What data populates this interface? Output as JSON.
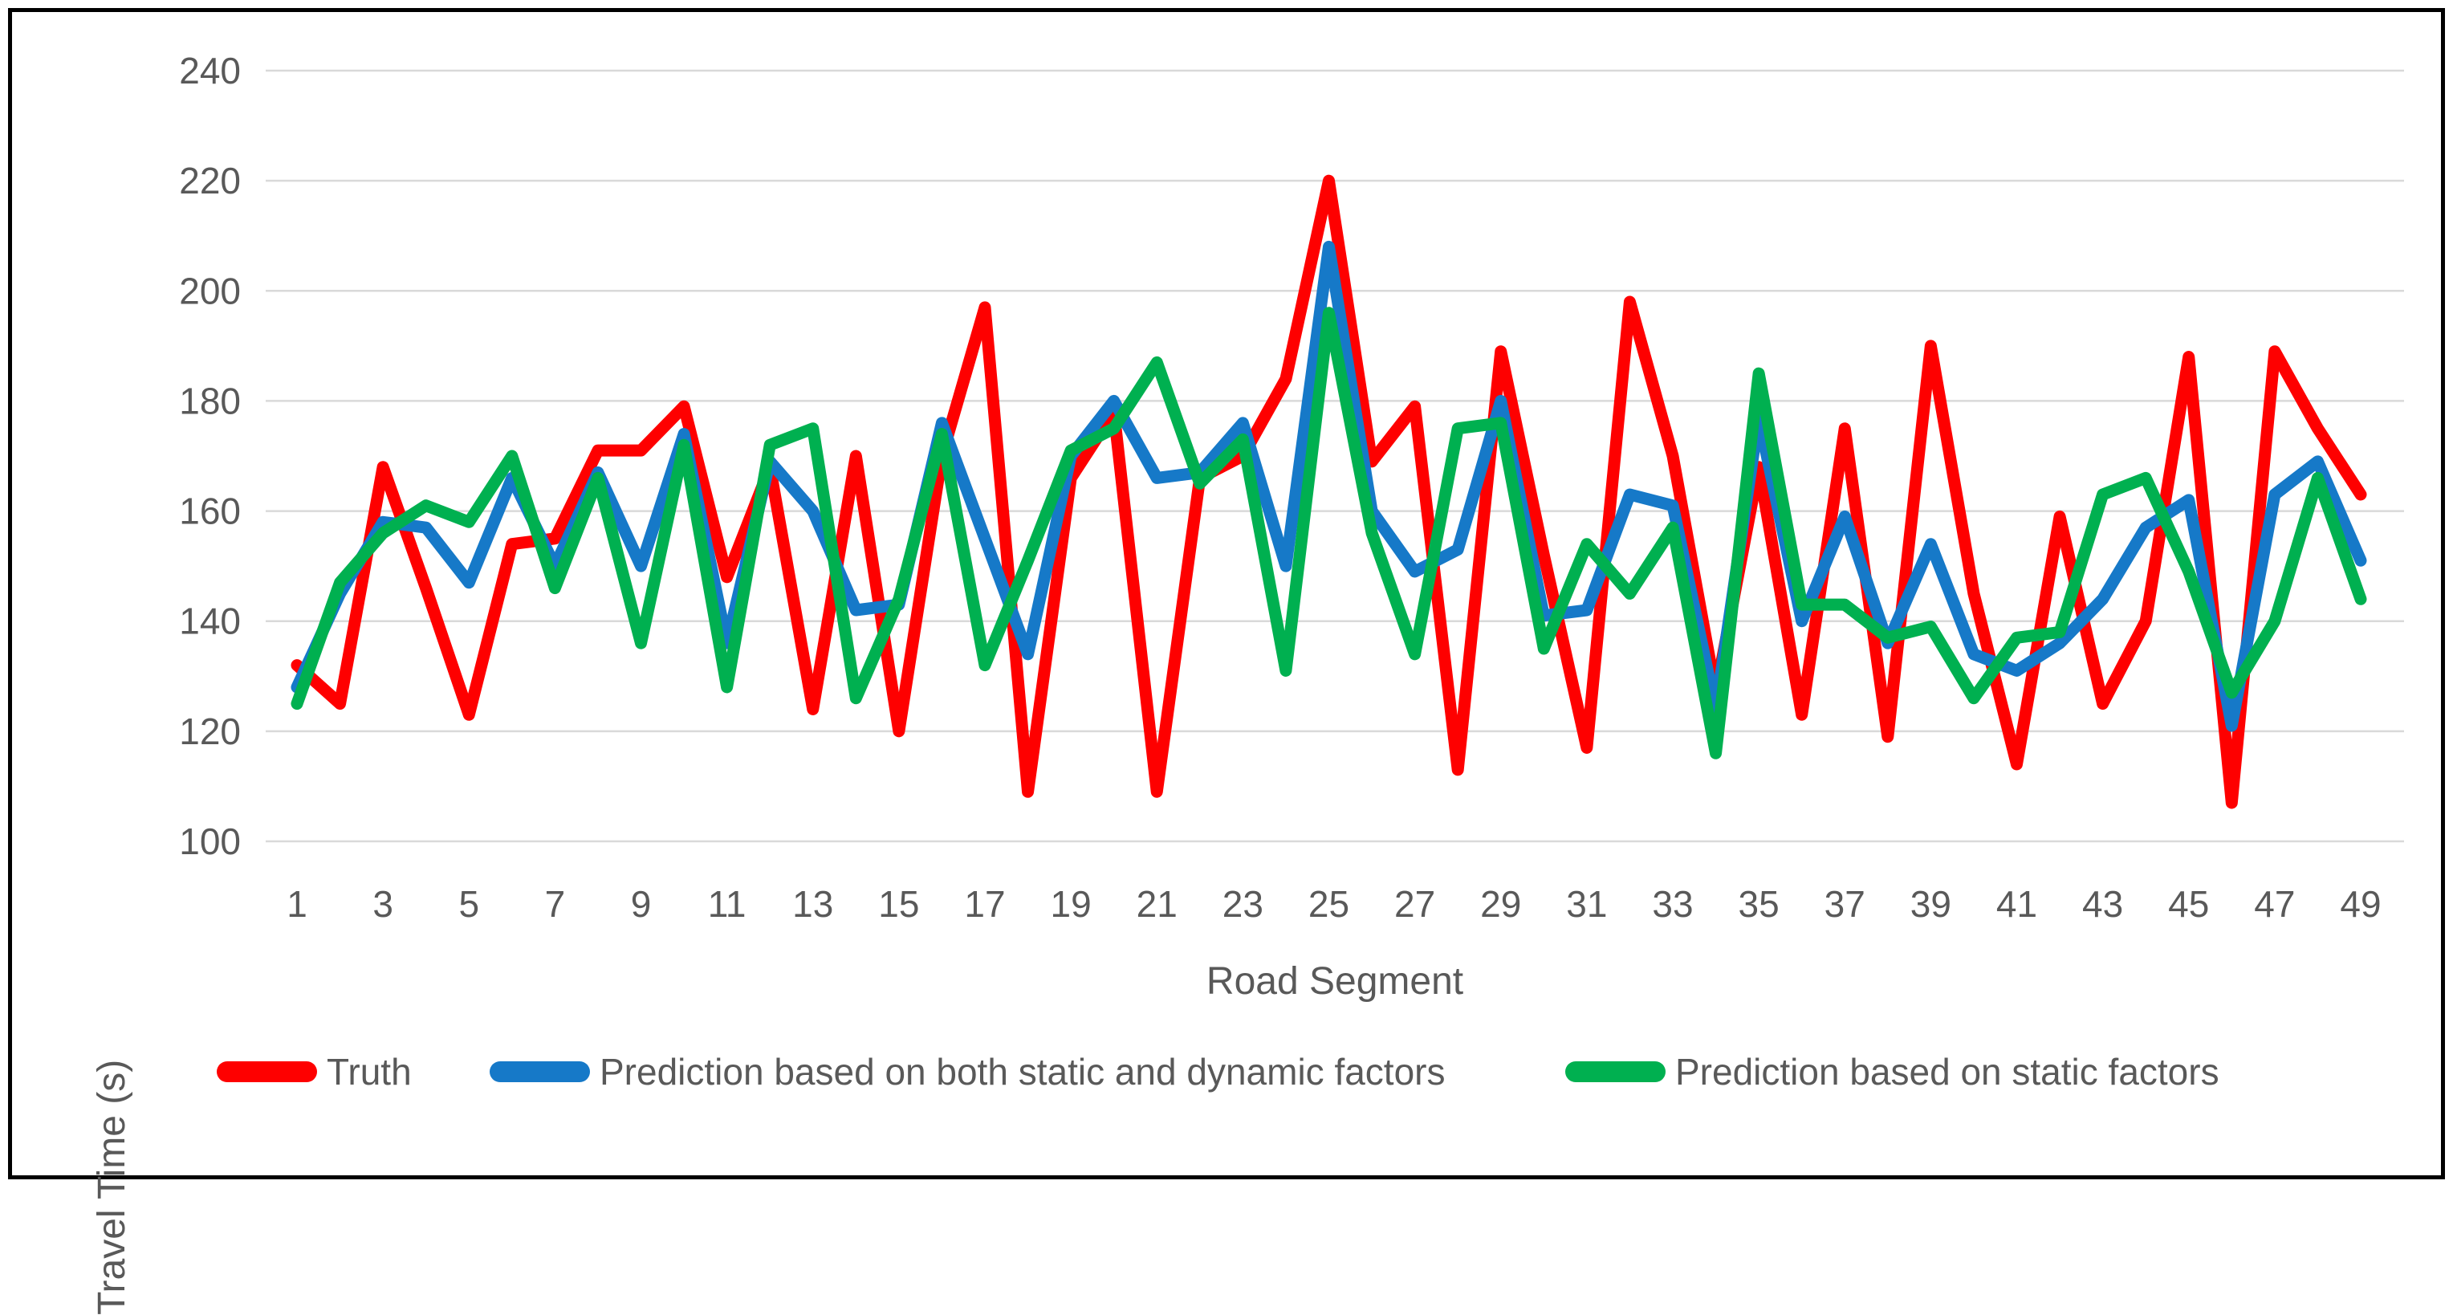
{
  "chart_data": {
    "type": "line",
    "title": "",
    "xlabel": "Road Segment",
    "ylabel": "Travel Time (s)",
    "x": [
      1,
      2,
      3,
      4,
      5,
      6,
      7,
      8,
      9,
      10,
      11,
      12,
      13,
      14,
      15,
      16,
      17,
      18,
      19,
      20,
      21,
      22,
      23,
      24,
      25,
      26,
      27,
      28,
      29,
      30,
      31,
      32,
      33,
      34,
      35,
      36,
      37,
      38,
      39,
      40,
      41,
      42,
      43,
      44,
      45,
      46,
      47,
      48,
      49
    ],
    "x_tick_labels": [
      1,
      3,
      5,
      7,
      9,
      11,
      13,
      15,
      17,
      19,
      21,
      23,
      25,
      27,
      29,
      31,
      33,
      35,
      37,
      39,
      41,
      43,
      45,
      47,
      49
    ],
    "y_ticks": [
      100,
      120,
      140,
      160,
      180,
      200,
      220,
      240
    ],
    "ylim": [
      100,
      240
    ],
    "grid": "horizontal",
    "legend_position": "bottom",
    "background": "#ffffff",
    "gridline_color": "#d9d9d9",
    "text_color": "#595959",
    "series": [
      {
        "name": "Truth",
        "color": "#fe0000",
        "values": [
          132,
          125,
          168,
          146,
          123,
          154,
          155,
          171,
          171,
          179,
          148,
          168,
          124,
          170,
          120,
          170,
          197,
          109,
          166,
          178,
          109,
          166,
          170,
          184,
          220,
          169,
          179,
          113,
          189,
          152,
          117,
          198,
          170,
          127,
          168,
          123,
          175,
          119,
          190,
          145,
          114,
          159,
          125,
          140,
          188,
          107,
          189,
          175,
          163
        ]
      },
      {
        "name": "Prediction based on both static and dynamic factors",
        "color": "#1679c8",
        "values": [
          128,
          145,
          158,
          157,
          147,
          166,
          150,
          167,
          150,
          174,
          136,
          169,
          160,
          142,
          143,
          176,
          155,
          134,
          170,
          180,
          166,
          167,
          176,
          150,
          208,
          160,
          149,
          153,
          180,
          141,
          142,
          163,
          161,
          124,
          177,
          140,
          159,
          136,
          154,
          134,
          131,
          136,
          144,
          157,
          162,
          121,
          163,
          169,
          151
        ]
      },
      {
        "name": "Prediction based on static factors",
        "color": "#00b050",
        "values": [
          125,
          147,
          156,
          161,
          158,
          170,
          146,
          166,
          136,
          172,
          128,
          172,
          175,
          126,
          144,
          174,
          132,
          151,
          171,
          175,
          187,
          165,
          173,
          131,
          196,
          156,
          134,
          175,
          176,
          135,
          154,
          145,
          157,
          116,
          185,
          143,
          143,
          137,
          139,
          126,
          137,
          138,
          163,
          166,
          149,
          127,
          140,
          166,
          144
        ]
      }
    ]
  }
}
